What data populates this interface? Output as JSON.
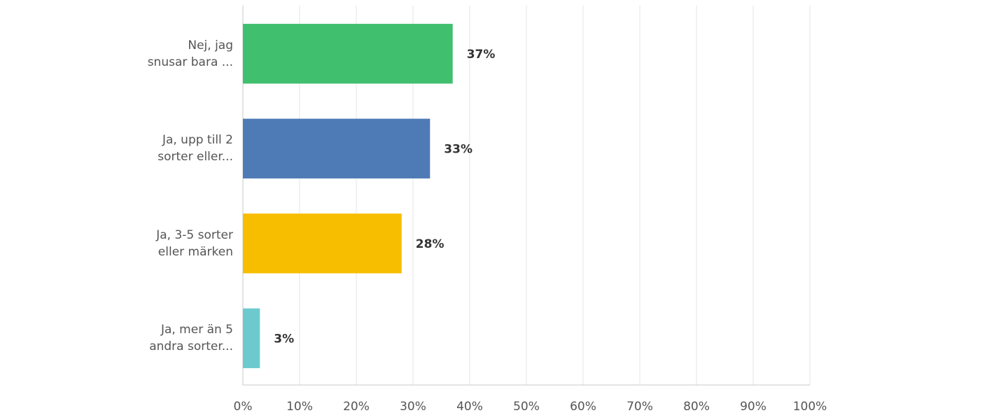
{
  "chart_data": {
    "type": "barh",
    "categories": [
      "Nej, jag\nsnusar bara ...",
      "Ja, upp till 2\nsorter eller...",
      "Ja, 3-5 sorter\neller märken",
      "Ja, mer än 5\nandra sorter..."
    ],
    "values": [
      37,
      33,
      28,
      3
    ],
    "value_labels": [
      "37%",
      "33%",
      "28%",
      "3%"
    ],
    "colors": [
      "#40bf6e",
      "#4e7bb6",
      "#f7be00",
      "#6ccacf"
    ],
    "xlim": [
      0,
      100
    ],
    "xticks": [
      {
        "value": 0,
        "label": "0%"
      },
      {
        "value": 10,
        "label": "10%"
      },
      {
        "value": 20,
        "label": "20%"
      },
      {
        "value": 30,
        "label": "30%"
      },
      {
        "value": 40,
        "label": "40%"
      },
      {
        "value": 50,
        "label": "50%"
      },
      {
        "value": 60,
        "label": "60%"
      },
      {
        "value": 70,
        "label": "70%"
      },
      {
        "value": 80,
        "label": "80%"
      },
      {
        "value": 90,
        "label": "90%"
      },
      {
        "value": 100,
        "label": "100%"
      }
    ],
    "grid": true
  }
}
